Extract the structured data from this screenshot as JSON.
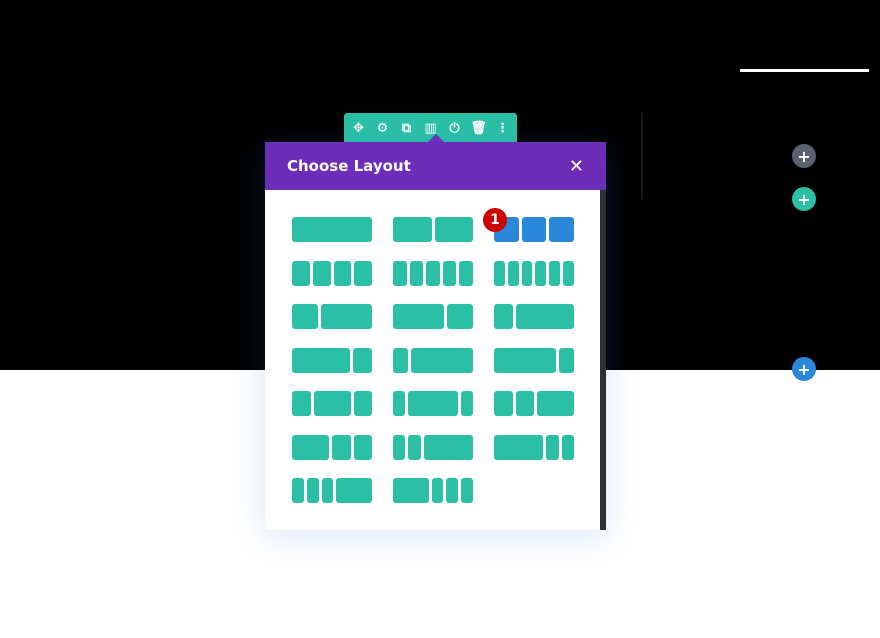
{
  "toolbar": {
    "icons": [
      {
        "name": "move-icon",
        "glyph": "✥"
      },
      {
        "name": "gear-icon",
        "glyph": "⚙"
      },
      {
        "name": "duplicate-icon",
        "glyph": "⧉"
      },
      {
        "name": "columns-icon",
        "glyph": "▥"
      },
      {
        "name": "power-icon",
        "glyph": "⏻"
      },
      {
        "name": "trash-icon",
        "glyph": "🗑"
      },
      {
        "name": "more-icon",
        "glyph": "⋮"
      }
    ],
    "color": "#2bc0a5"
  },
  "modal": {
    "title": "Choose Layout",
    "close_glyph": "✕",
    "header_color": "#6c2eb9",
    "selected_index": 2,
    "badge": "1",
    "layouts": [
      [
        1
      ],
      [
        1,
        1
      ],
      [
        1,
        1,
        1
      ],
      [
        1,
        1,
        1,
        1
      ],
      [
        1,
        1,
        1,
        1,
        1
      ],
      [
        1,
        1,
        1,
        1,
        1,
        1
      ],
      [
        1,
        2
      ],
      [
        2,
        1
      ],
      [
        1,
        3
      ],
      [
        3,
        1
      ],
      [
        1,
        4
      ],
      [
        4,
        1
      ],
      [
        1,
        2,
        1
      ],
      [
        1,
        4,
        1
      ],
      [
        1,
        1,
        2
      ],
      [
        2,
        1,
        1
      ],
      [
        1,
        1,
        4
      ],
      [
        4,
        1,
        1
      ],
      [
        1,
        1,
        1,
        3
      ],
      [
        3,
        1,
        1,
        1
      ]
    ]
  },
  "side_buttons": [
    {
      "name": "add-row-button",
      "glyph": "+",
      "color": "#5a6270"
    },
    {
      "name": "add-module-button",
      "glyph": "+",
      "color": "#2bc0a5"
    },
    {
      "name": "add-section-button",
      "glyph": "+",
      "color": "#2b87da"
    }
  ]
}
